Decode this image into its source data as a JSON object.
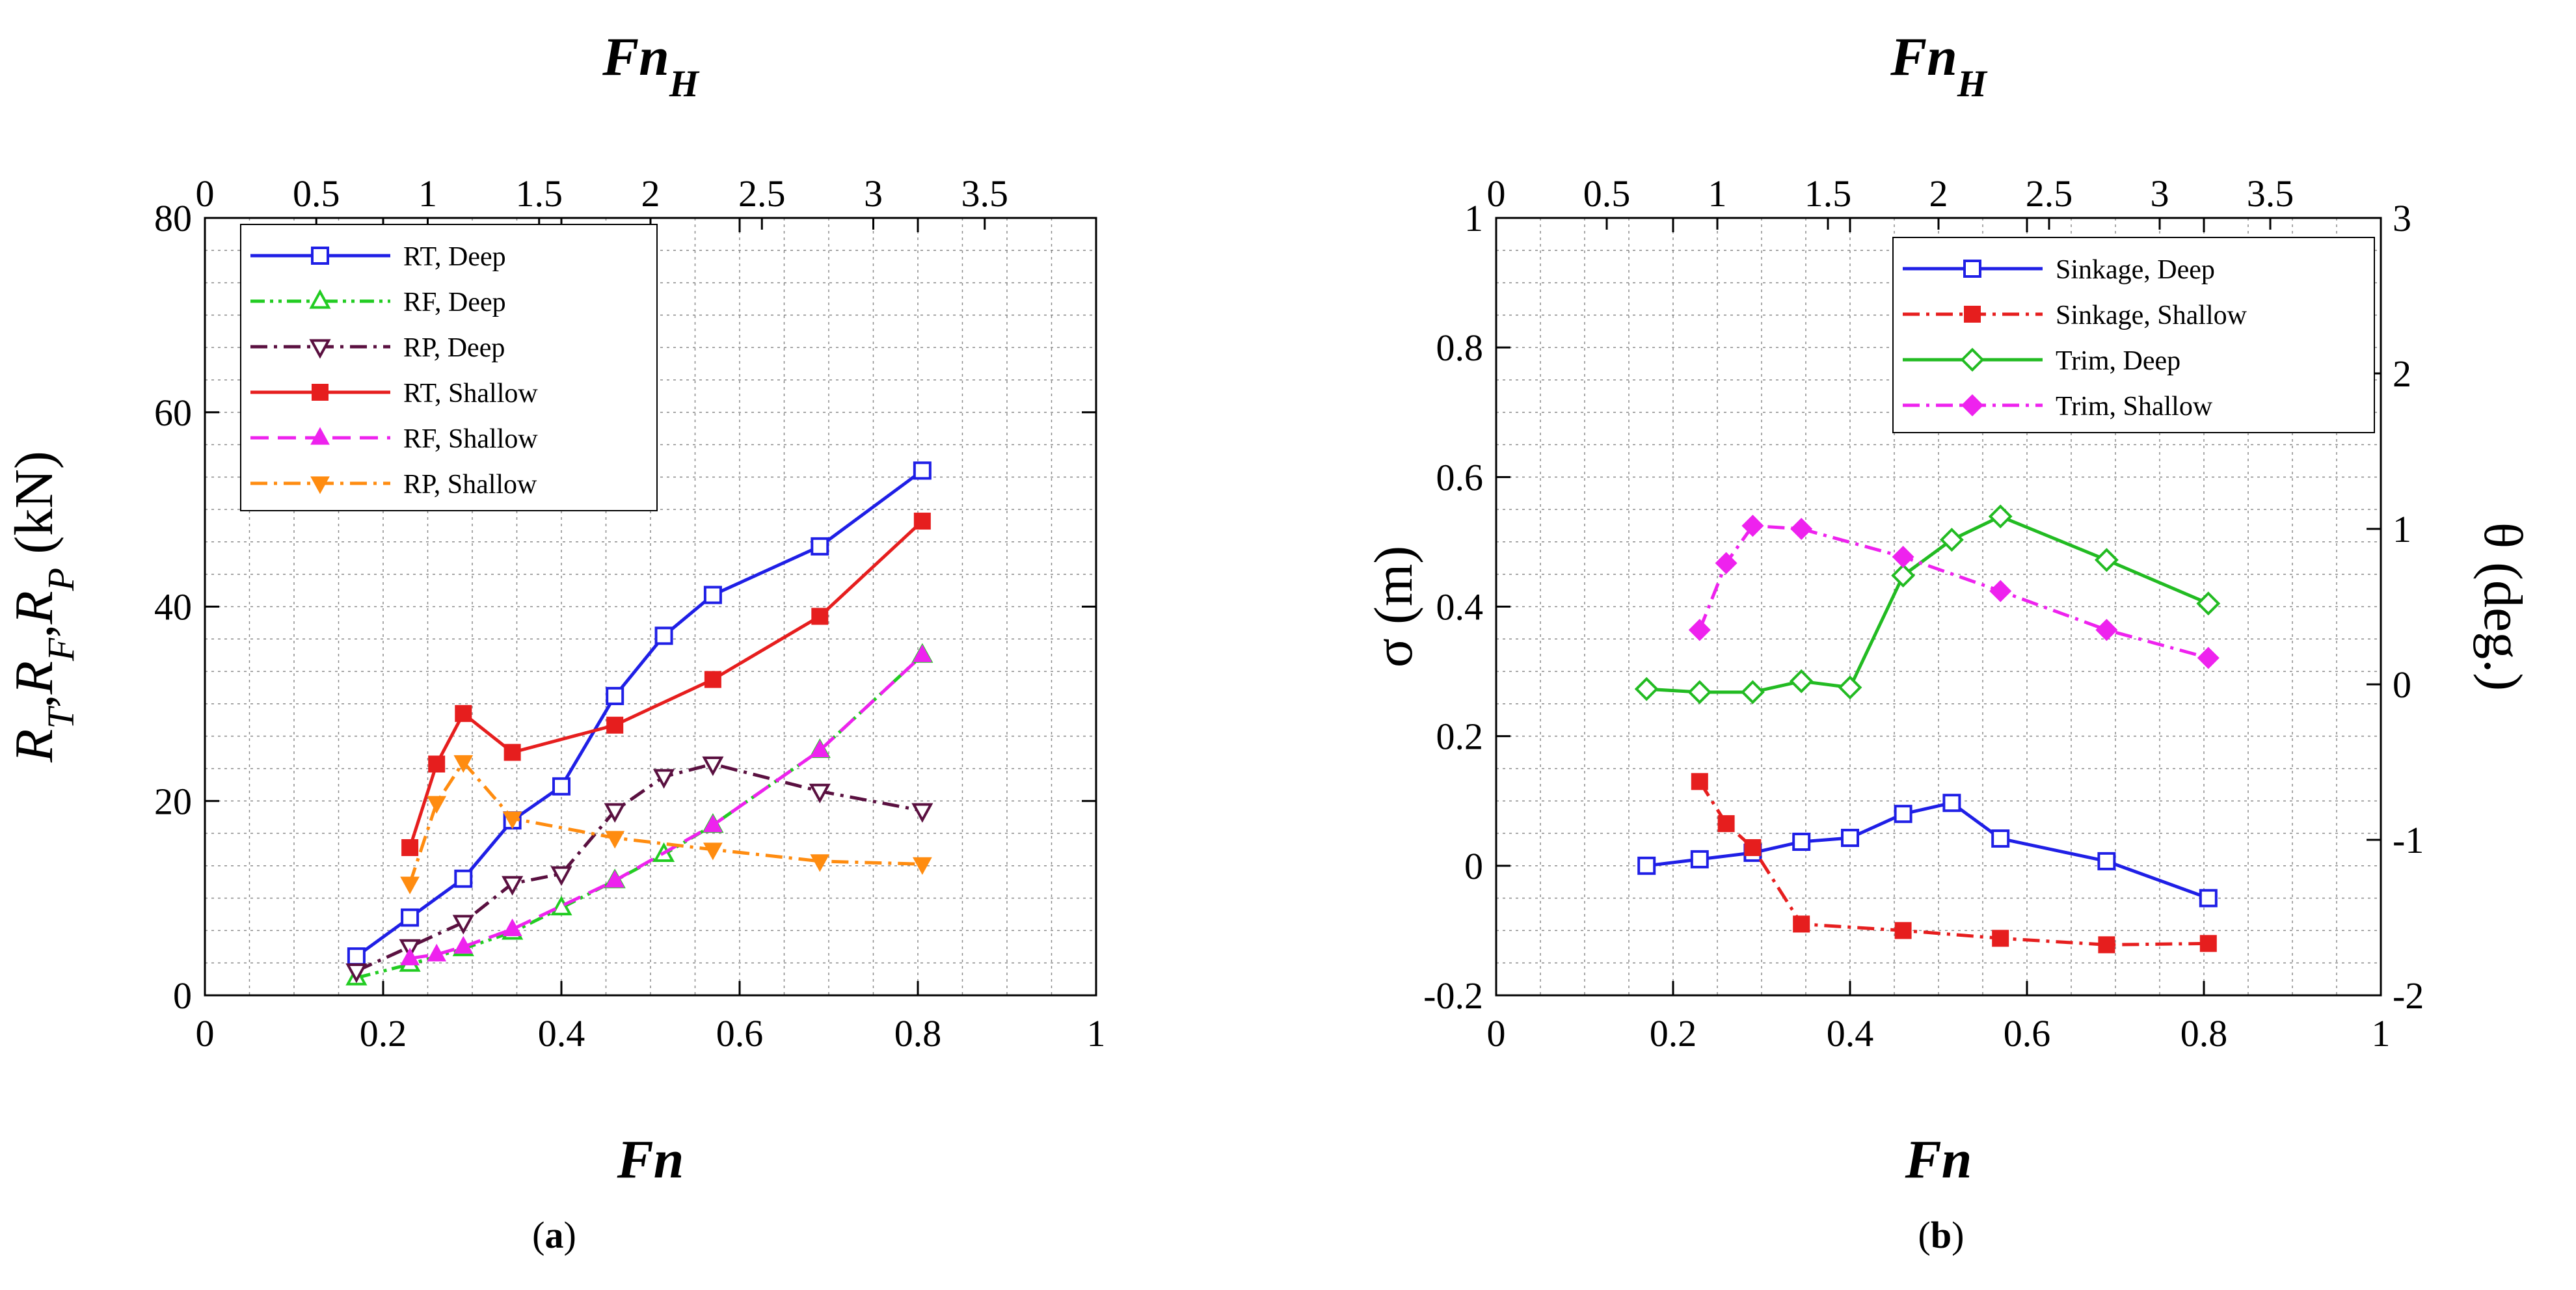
{
  "figure": {
    "caption_a": "(a)",
    "caption_a_letter": "a",
    "caption_b": "(b)",
    "caption_b_letter": "b"
  },
  "chart_data": [
    {
      "type": "line",
      "panel": "a",
      "xlabel": "Fn",
      "x2label": "FnH",
      "ylabel": "RT,RF,RP (kN)",
      "xlim": [
        0,
        1
      ],
      "x2lim": [
        0,
        4
      ],
      "ylim": [
        0,
        80
      ],
      "xticks": [
        "0",
        "0.2",
        "0.4",
        "0.6",
        "0.8",
        "1"
      ],
      "x2ticks": [
        "0",
        "0.5",
        "1",
        "1.5",
        "2",
        "2.5",
        "3",
        "3.5"
      ],
      "yticks": [
        "0",
        "20",
        "40",
        "60",
        "80"
      ],
      "grid": true,
      "legend_position": "top-left",
      "series": [
        {
          "name": "RT, Deep",
          "color": "#1f1fe6",
          "marker": "square-open",
          "dash": "solid",
          "x": [
            0.17,
            0.23,
            0.29,
            0.345,
            0.4,
            0.46,
            0.515,
            0.57,
            0.69,
            0.805
          ],
          "y": [
            4,
            8,
            12,
            18,
            21.5,
            30.8,
            37,
            41.2,
            46.2,
            54
          ]
        },
        {
          "name": "RF, Deep",
          "color": "#22cc22",
          "marker": "triangle-up-open",
          "dash": "dash-dot-dot",
          "x": [
            0.17,
            0.23,
            0.29,
            0.345,
            0.4,
            0.46,
            0.515,
            0.57,
            0.69,
            0.805
          ],
          "y": [
            1.8,
            3.2,
            4.8,
            6.5,
            9,
            11.8,
            14.5,
            17.5,
            25.2,
            35
          ]
        },
        {
          "name": "RP, Deep",
          "color": "#5a1040",
          "marker": "triangle-down-open",
          "dash": "dash-dot",
          "x": [
            0.17,
            0.23,
            0.29,
            0.345,
            0.4,
            0.46,
            0.515,
            0.57,
            0.69,
            0.805
          ],
          "y": [
            2.5,
            5,
            7.5,
            11.5,
            12.5,
            19,
            22.5,
            23.8,
            21,
            19
          ]
        },
        {
          "name": "RT, Shallow",
          "color": "#e61e1e",
          "marker": "square-filled",
          "dash": "solid",
          "x": [
            0.23,
            0.26,
            0.29,
            0.345,
            0.46,
            0.57,
            0.69,
            0.805
          ],
          "y": [
            15.2,
            23.8,
            29,
            25,
            27.8,
            32.5,
            39,
            48.8
          ]
        },
        {
          "name": "RF, Shallow",
          "color": "#ee22ee",
          "marker": "triangle-up-filled",
          "dash": "dash",
          "x": [
            0.23,
            0.26,
            0.29,
            0.345,
            0.46,
            0.57,
            0.69,
            0.805
          ],
          "y": [
            3.8,
            4.2,
            5,
            6.8,
            11.8,
            17.5,
            25.2,
            35
          ]
        },
        {
          "name": "RP, Shallow",
          "color": "#ff8c10",
          "marker": "triangle-down-filled",
          "dash": "dash-dot",
          "x": [
            0.23,
            0.26,
            0.29,
            0.345,
            0.46,
            0.57,
            0.69,
            0.805
          ],
          "y": [
            11.5,
            19.8,
            24,
            18.2,
            16.2,
            15,
            13.8,
            13.5
          ]
        }
      ]
    },
    {
      "type": "line",
      "panel": "b",
      "xlabel": "Fn",
      "x2label": "FnH",
      "ylabel": "σ (m)",
      "y2label": "θ (deg.)",
      "xlim": [
        0,
        1
      ],
      "x2lim": [
        0,
        4
      ],
      "ylim": [
        -0.2,
        1
      ],
      "y2lim": [
        -2,
        3
      ],
      "xticks": [
        "0",
        "0.2",
        "0.4",
        "0.6",
        "0.8",
        "1"
      ],
      "x2ticks": [
        "0",
        "0.5",
        "1",
        "1.5",
        "2",
        "2.5",
        "3",
        "3.5"
      ],
      "yticks": [
        "-0.2",
        "0",
        "0.2",
        "0.4",
        "0.6",
        "0.8",
        "1"
      ],
      "y2ticks": [
        "-2",
        "-1",
        "0",
        "1",
        "2",
        "3"
      ],
      "grid": true,
      "legend_position": "top-right",
      "series": [
        {
          "name": "Sinkage, Deep",
          "color": "#1f1fe6",
          "marker": "square-open",
          "dash": "solid",
          "axis": "left",
          "x": [
            0.17,
            0.23,
            0.29,
            0.345,
            0.4,
            0.46,
            0.515,
            0.57,
            0.69,
            0.805
          ],
          "y": [
            0,
            0.01,
            0.02,
            0.037,
            0.043,
            0.08,
            0.097,
            0.042,
            0.007,
            -0.05
          ]
        },
        {
          "name": "Sinkage, Shallow",
          "color": "#e61e1e",
          "marker": "square-filled",
          "dash": "dash-dot",
          "axis": "left",
          "x": [
            0.23,
            0.26,
            0.29,
            0.345,
            0.46,
            0.57,
            0.69,
            0.805
          ],
          "y": [
            0.13,
            0.065,
            0.028,
            -0.09,
            -0.1,
            -0.112,
            -0.122,
            -0.12
          ]
        },
        {
          "name": "Trim, Deep",
          "color": "#22bb22",
          "marker": "diamond-open",
          "dash": "solid",
          "axis": "right",
          "x": [
            0.17,
            0.23,
            0.29,
            0.345,
            0.4,
            0.46,
            0.515,
            0.57,
            0.69,
            0.805
          ],
          "y": [
            -0.03,
            -0.05,
            -0.05,
            0.02,
            -0.02,
            0.7,
            0.93,
            1.08,
            0.8,
            0.52
          ]
        },
        {
          "name": "Trim, Shallow",
          "color": "#ee22ee",
          "marker": "diamond-filled",
          "dash": "dash-dot",
          "axis": "right",
          "x": [
            0.23,
            0.26,
            0.29,
            0.345,
            0.46,
            0.57,
            0.69,
            0.805
          ],
          "y": [
            0.35,
            0.78,
            1.02,
            1.0,
            0.82,
            0.6,
            0.35,
            0.17
          ]
        }
      ]
    }
  ]
}
